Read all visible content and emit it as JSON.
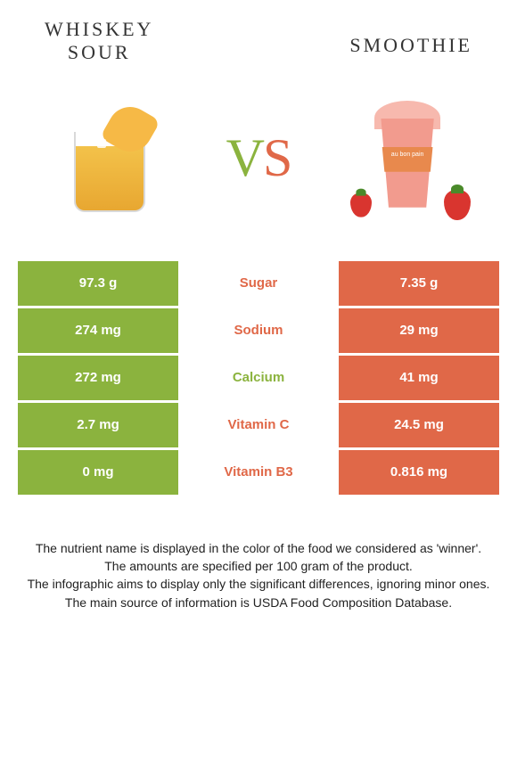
{
  "titles": {
    "left_line1": "Whiskey",
    "left_line2": "sour",
    "right": "Smoothie"
  },
  "vs": {
    "v": "V",
    "s": "S"
  },
  "colors": {
    "left": "#8bb33e",
    "right": "#e06848",
    "background": "#ffffff",
    "text": "#222222"
  },
  "cup_label": "au bon pain",
  "rows": [
    {
      "left": "97.3 g",
      "label": "Sugar",
      "right": "7.35 g",
      "winner": "right"
    },
    {
      "left": "274 mg",
      "label": "Sodium",
      "right": "29 mg",
      "winner": "right"
    },
    {
      "left": "272 mg",
      "label": "Calcium",
      "right": "41 mg",
      "winner": "left"
    },
    {
      "left": "2.7 mg",
      "label": "Vitamin C",
      "right": "24.5 mg",
      "winner": "right"
    },
    {
      "left": "0 mg",
      "label": "Vitamin B3",
      "right": "0.816 mg",
      "winner": "right"
    }
  ],
  "footer": {
    "l1": "The nutrient name is displayed in the color of the food we considered as 'winner'.",
    "l2": "The amounts are specified per 100 gram of the product.",
    "l3": "The infographic aims to display only the significant differences, ignoring minor ones.",
    "l4": "The main source of information is USDA Food Composition Database."
  }
}
